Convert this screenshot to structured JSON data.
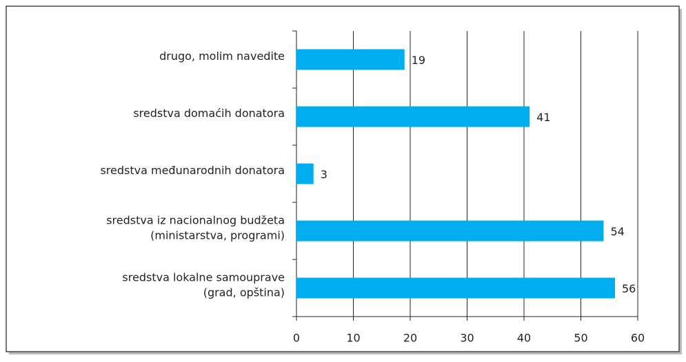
{
  "chart_data": {
    "type": "bar",
    "orientation": "horizontal",
    "categories": [
      "drugo, molim navedite",
      "sredstva domaćih donatora",
      "sredstva međunarodnih donatora",
      "sredstva iz nacionalnog budžeta\n(ministarstva, programi)",
      "sredstva lokalne samouprave\n(grad, opština)"
    ],
    "values": [
      19,
      41,
      3,
      54,
      56
    ],
    "color": "#00aeef",
    "xlim": [
      0,
      60
    ],
    "xticks": [
      0,
      10,
      20,
      30,
      40,
      50,
      60
    ],
    "grid": true
  }
}
